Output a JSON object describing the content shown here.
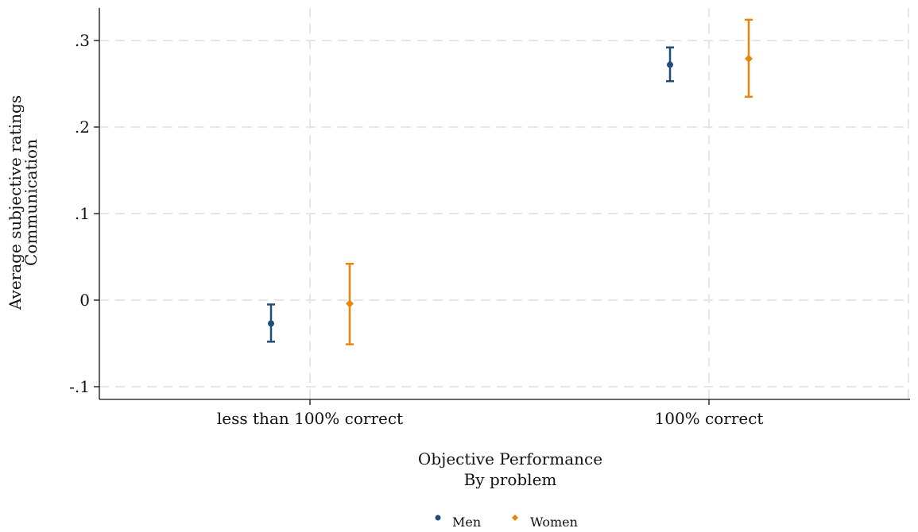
{
  "chart_data": {
    "type": "scatter",
    "categories": [
      "less than 100% correct",
      "100% correct"
    ],
    "series": [
      {
        "name": "Men",
        "color": "#1f4e79",
        "marker": "circle",
        "points": [
          {
            "category": "less than 100% correct",
            "y": -0.027,
            "ci": [
              -0.048,
              -0.005
            ]
          },
          {
            "category": "100% correct",
            "y": 0.272,
            "ci": [
              0.253,
              0.292
            ]
          }
        ]
      },
      {
        "name": "Women",
        "color": "#e8850c",
        "marker": "diamond",
        "points": [
          {
            "category": "less than 100% correct",
            "y": -0.004,
            "ci": [
              -0.051,
              0.042
            ]
          },
          {
            "category": "100% correct",
            "y": 0.279,
            "ci": [
              0.235,
              0.324
            ]
          }
        ]
      }
    ],
    "ylabel": [
      "Average subjective ratings",
      "Communication"
    ],
    "xlabel": [
      "Objective Performance",
      "By problem"
    ],
    "yticks": [
      -0.1,
      0,
      0.1,
      0.2,
      0.3
    ],
    "ytick_labels": [
      "-.1",
      "0",
      ".1",
      ".2",
      ".3"
    ],
    "ylim": [
      -0.11,
      0.336
    ],
    "grid": true,
    "legend_position": "bottom"
  }
}
